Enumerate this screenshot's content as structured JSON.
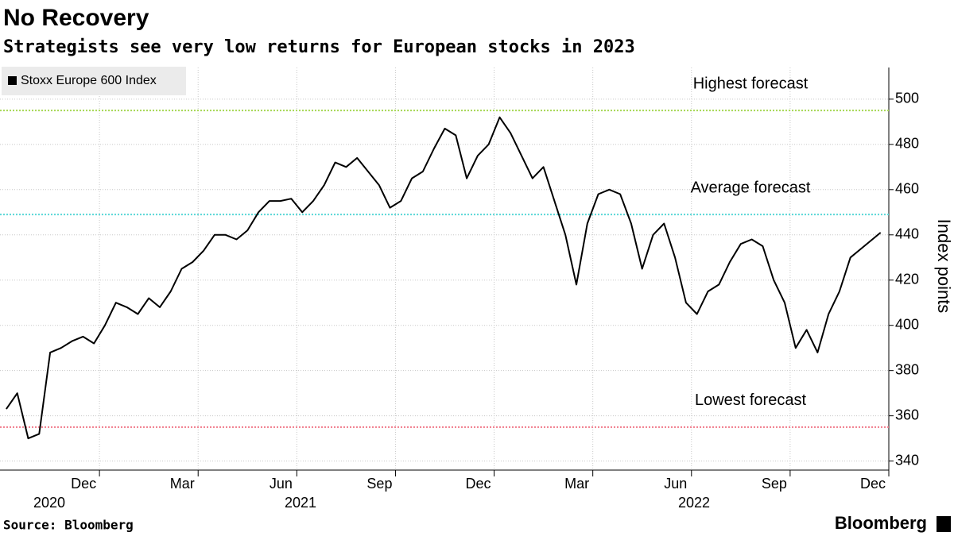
{
  "chart_data": {
    "type": "line",
    "title": "No Recovery",
    "subtitle": "Strategists see very low returns for European stocks in 2023",
    "y_axis_label": "Index points",
    "source": "Source: Bloomberg",
    "brand": "Bloomberg",
    "x": [
      "2020-09",
      "2020-09",
      "2020-09",
      "2020-10",
      "2020-10",
      "2020-10",
      "2020-11",
      "2020-11",
      "2020-11",
      "2020-12",
      "2020-12",
      "2020-12",
      "2021-01",
      "2021-01",
      "2021-01",
      "2021-02",
      "2021-02",
      "2021-02",
      "2021-03",
      "2021-03",
      "2021-03",
      "2021-04",
      "2021-04",
      "2021-04",
      "2021-05",
      "2021-05",
      "2021-05",
      "2021-06",
      "2021-06",
      "2021-06",
      "2021-07",
      "2021-07",
      "2021-07",
      "2021-08",
      "2021-08",
      "2021-08",
      "2021-09",
      "2021-09",
      "2021-09",
      "2021-10",
      "2021-10",
      "2021-10",
      "2021-11",
      "2021-11",
      "2021-11",
      "2021-12",
      "2021-12",
      "2021-12",
      "2022-01",
      "2022-01",
      "2022-01",
      "2022-02",
      "2022-02",
      "2022-02",
      "2022-03",
      "2022-03",
      "2022-03",
      "2022-04",
      "2022-04",
      "2022-04",
      "2022-05",
      "2022-05",
      "2022-05",
      "2022-06",
      "2022-06",
      "2022-06",
      "2022-07",
      "2022-07",
      "2022-07",
      "2022-08",
      "2022-08",
      "2022-08",
      "2022-09",
      "2022-09",
      "2022-09",
      "2022-10",
      "2022-10",
      "2022-10",
      "2022-11",
      "2022-11"
    ],
    "series": [
      {
        "name": "Stoxx Europe 600 Index",
        "color": "#000000",
        "values": [
          363,
          370,
          350,
          352,
          388,
          390,
          393,
          395,
          392,
          400,
          410,
          408,
          405,
          412,
          408,
          415,
          425,
          428,
          433,
          440,
          440,
          438,
          442,
          450,
          455,
          455,
          456,
          450,
          455,
          462,
          472,
          470,
          474,
          468,
          462,
          452,
          455,
          465,
          468,
          478,
          487,
          484,
          465,
          475,
          480,
          492,
          485,
          475,
          465,
          470,
          455,
          440,
          418,
          445,
          458,
          460,
          458,
          445,
          425,
          440,
          445,
          430,
          410,
          405,
          415,
          418,
          428,
          436,
          438,
          435,
          420,
          410,
          390,
          398,
          388,
          405,
          415,
          430,
          435,
          441
        ]
      }
    ],
    "reference_lines": [
      {
        "label": "Highest forecast",
        "value": 495,
        "color": "#a6d854"
      },
      {
        "label": "Average forecast",
        "value": 449,
        "color": "#5ad8d8"
      },
      {
        "label": "Lowest forecast",
        "value": 355,
        "color": "#f07a8a"
      }
    ],
    "xlim": [
      "2020-09",
      "2022-12"
    ],
    "xticks": [
      {
        "value": "2020-12",
        "label": "Dec"
      },
      {
        "value": "2021-03",
        "label": "Mar"
      },
      {
        "value": "2021-06",
        "label": "Jun"
      },
      {
        "value": "2021-09",
        "label": "Sep"
      },
      {
        "value": "2021-12",
        "label": "Dec"
      },
      {
        "value": "2022-03",
        "label": "Mar"
      },
      {
        "value": "2022-06",
        "label": "Jun"
      },
      {
        "value": "2022-09",
        "label": "Sep"
      },
      {
        "value": "2022-12",
        "label": "Dec"
      }
    ],
    "x_year_labels": [
      "2020",
      "2021",
      "2022"
    ],
    "ylim": [
      336,
      514
    ],
    "yticks": [
      340,
      360,
      380,
      400,
      420,
      440,
      460,
      480,
      500
    ],
    "grid": true,
    "legend": "top-left"
  }
}
